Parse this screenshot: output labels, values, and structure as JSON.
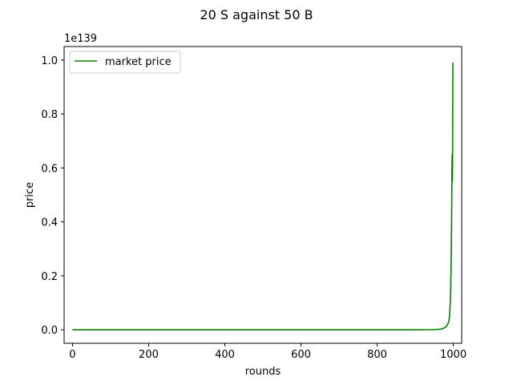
{
  "chart_data": {
    "type": "line",
    "title": "20 S against 50 B",
    "xlabel": "rounds",
    "ylabel": "price",
    "y_offset_label": "1e139",
    "xlim": [
      -22,
      1022
    ],
    "ylim": [
      -0.05,
      1.05
    ],
    "x_ticks": [
      0,
      200,
      400,
      600,
      800,
      1000
    ],
    "y_ticks": [
      0.0,
      0.2,
      0.4,
      0.6,
      0.8,
      1.0
    ],
    "x_tick_labels": [
      "0",
      "200",
      "400",
      "600",
      "800",
      "1000"
    ],
    "y_tick_labels": [
      "0.0",
      "0.2",
      "0.4",
      "0.6",
      "0.8",
      "1.0"
    ],
    "legend": {
      "placement": "top-left"
    },
    "color": "#008000",
    "series": [
      {
        "name": "market price",
        "x": [
          0,
          100,
          200,
          300,
          400,
          500,
          600,
          700,
          800,
          900,
          950,
          970,
          980,
          985,
          988,
          990,
          992,
          993,
          994,
          995,
          996,
          996.5,
          997,
          997.5,
          998,
          998.3,
          998.6,
          999,
          999.3,
          999.6
        ],
        "y": [
          0,
          0,
          0,
          0,
          0,
          0,
          0,
          0,
          0,
          0,
          0.0005,
          0.003,
          0.01,
          0.02,
          0.03,
          0.05,
          0.1,
          0.15,
          0.22,
          0.33,
          0.48,
          0.62,
          0.65,
          0.55,
          0.6,
          0.75,
          0.9,
          0.98,
          0.99,
          0.99
        ]
      }
    ]
  }
}
